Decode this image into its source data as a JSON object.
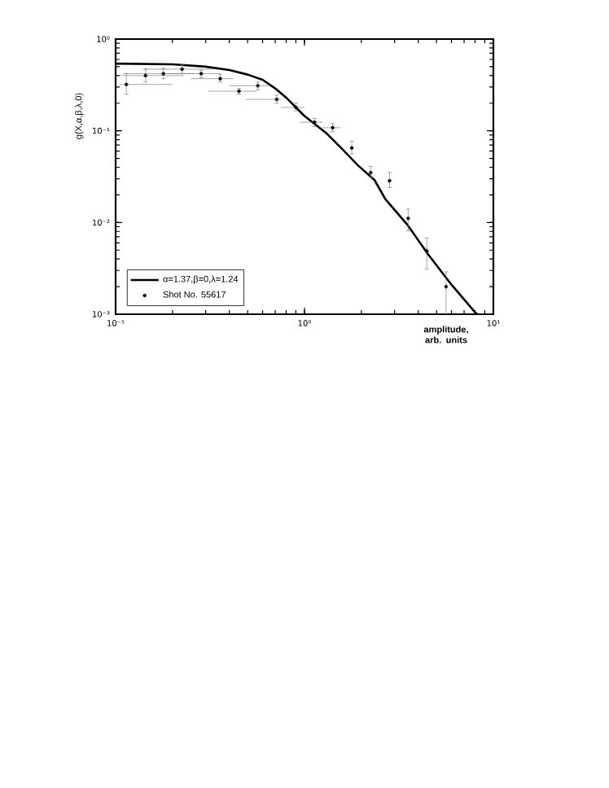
{
  "chart_data": {
    "type": "scatter",
    "xlabel": "amplitude, arb. units",
    "ylabel": "g(X,α,β,λ,0)",
    "log": "xy",
    "xlim": [
      0.1,
      10
    ],
    "ylim": [
      0.001,
      1
    ],
    "xticks": [
      {
        "value": 0.1,
        "label": "10⁻¹"
      },
      {
        "value": 1,
        "label": "10⁰"
      },
      {
        "value": 10,
        "label": "10¹"
      }
    ],
    "yticks": [
      {
        "value": 0.001,
        "label": "10⁻³"
      },
      {
        "value": 0.01,
        "label": "10⁻²"
      },
      {
        "value": 0.1,
        "label": "10⁻¹"
      },
      {
        "value": 1,
        "label": "10⁰"
      }
    ],
    "legend": "bottom left",
    "grid": false,
    "series": [
      {
        "name": "α=1.37,β=0,λ=1.24",
        "type": "line",
        "color": "#000000",
        "marker": "none",
        "line_style": "solid",
        "x": [
          0.1,
          0.2,
          0.3,
          0.4,
          0.5,
          0.6,
          0.7,
          0.8,
          0.9,
          1.0,
          1.3,
          1.6,
          1.92,
          2.35,
          2.68,
          3.5,
          4.55,
          6.0,
          8.0,
          8.2
        ],
        "values": [
          0.54,
          0.53,
          0.5,
          0.46,
          0.41,
          0.36,
          0.29,
          0.23,
          0.18,
          0.145,
          0.095,
          0.062,
          0.042,
          0.029,
          0.018,
          0.0095,
          0.0044,
          0.0021,
          0.00105,
          0.001
        ]
      },
      {
        "name": "Shot No. 55617",
        "color": "#000000",
        "marker": "circle",
        "x": [
          0.114,
          0.144,
          0.179,
          0.225,
          0.284,
          0.358,
          0.45,
          0.566,
          0.713,
          0.9,
          1.13,
          1.41,
          1.78,
          2.24,
          2.82,
          3.54,
          4.44,
          5.62
        ],
        "values": [
          0.32,
          0.4,
          0.42,
          0.47,
          0.42,
          0.37,
          0.27,
          0.31,
          0.22,
          0.18,
          0.124,
          0.108,
          0.065,
          0.035,
          0.0285,
          0.0111,
          0.0049,
          0.002
        ],
        "errors": [
          [
            0.25,
            0.42
          ],
          [
            0.34,
            0.47
          ],
          [
            0.37,
            0.48
          ],
          [
            0.42,
            0.52
          ],
          [
            0.38,
            0.46
          ],
          [
            0.34,
            0.41
          ],
          [
            0.25,
            0.29
          ],
          [
            0.28,
            0.34
          ],
          [
            0.2,
            0.245
          ],
          [
            0.165,
            0.2
          ],
          [
            0.112,
            0.137
          ],
          [
            0.098,
            0.12
          ],
          [
            0.056,
            0.077
          ],
          [
            0.031,
            0.041
          ],
          [
            0.024,
            0.035
          ],
          [
            0.0081,
            0.014
          ],
          [
            0.0031,
            0.0068
          ],
          [
            0.001,
            0.0029
          ]
        ],
        "xerrors": [
          [
            0.105,
            0.2
          ],
          [
            0.105,
            0.23
          ],
          [
            0.11,
            0.26
          ],
          [
            0.14,
            0.33
          ],
          [
            0.18,
            0.36
          ],
          [
            0.25,
            0.42
          ],
          [
            0.31,
            0.56
          ],
          [
            0.4,
            0.65
          ],
          [
            0.49,
            0.75
          ],
          [
            0.75,
            1.0
          ],
          [
            0.95,
            1.25
          ],
          [
            1.25,
            1.55
          ],
          null,
          null,
          null,
          null,
          null,
          null
        ]
      }
    ]
  }
}
